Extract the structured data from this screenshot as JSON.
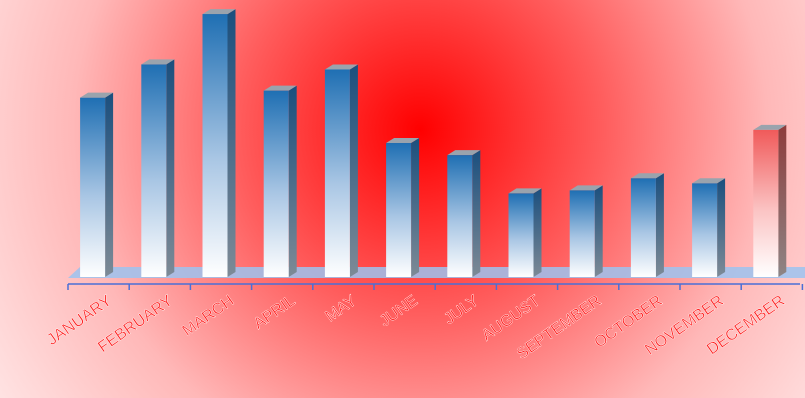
{
  "chart_data": {
    "type": "bar",
    "title": "",
    "xlabel": "",
    "ylabel": "",
    "categories": [
      "JANUARY",
      "FEBRUARY",
      "MARCH",
      "APRIL",
      "MAY",
      "JUNE",
      "JULY",
      "AUGUST",
      "SEPTEMBER",
      "OCTOBER",
      "NOVEMBER",
      "DECEMBER"
    ],
    "values": [
      178,
      211,
      261,
      185,
      206,
      133,
      121,
      83,
      86,
      98,
      93,
      146
    ],
    "ylim": [
      0,
      270
    ],
    "grid": false,
    "legend": "none",
    "highlight_index": 11,
    "colors": {
      "bar": "#1f6fb3",
      "bar_highlight": "#f05a5a",
      "tick_label": "#ff1a1a",
      "axis": "#4a6fd6",
      "floor": "#9cc3f0",
      "background_center": "#ff0000",
      "background_edge": "#fff4f4"
    }
  }
}
